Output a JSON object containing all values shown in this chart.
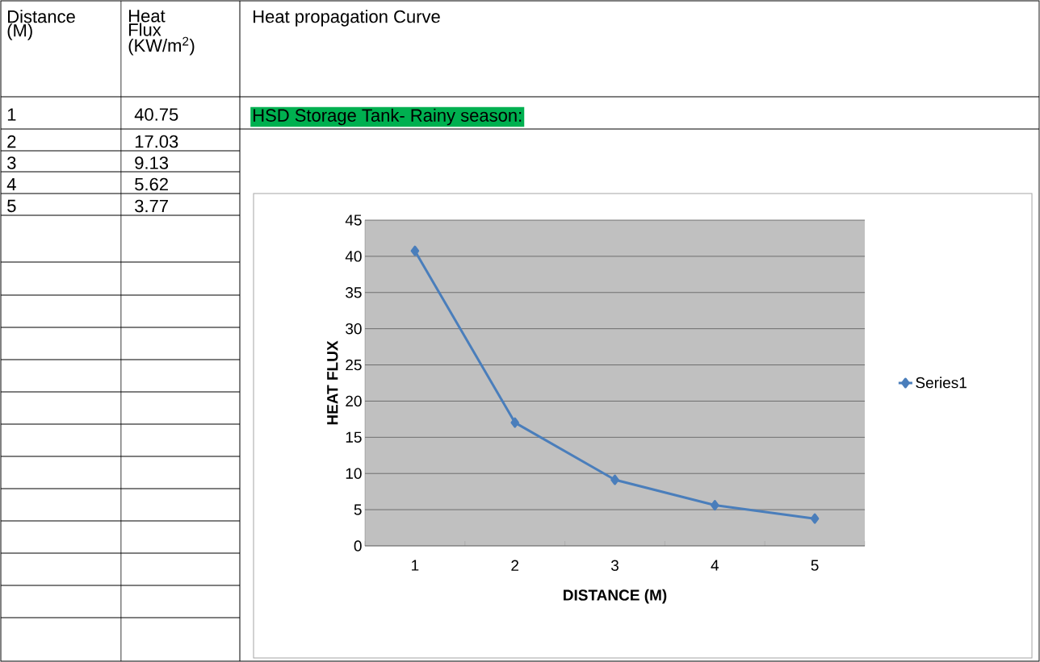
{
  "chart_data": {
    "type": "line",
    "title": "Heat propagation Curve",
    "subtitle": "HSD Storage Tank- Rainy season:",
    "xlabel": "DISTANCE (M)",
    "ylabel": "HEAT FLUX",
    "annotations": [
      "Distance (M)",
      "Heat Flux (KW/m$^{2}$)",
      "40.75",
      "17.03",
      "9.13",
      "5.62",
      "3.77"
    ],
    "categories": [
      "1",
      "2",
      "3",
      "4",
      "5"
    ],
    "series": [
      {
        "name": "Series1",
        "color": "#4a7ebb",
        "values": [
          40.75,
          17.03,
          9.13,
          5.62,
          3.77
        ]
      }
    ],
    "ylim": [
      0,
      45
    ],
    "yticks": [
      0,
      5,
      10,
      15,
      20,
      25,
      30,
      35,
      40,
      45
    ],
    "grid": "y",
    "legend": "right",
    "marker": "diamond",
    "line_style": "solid"
  }
}
